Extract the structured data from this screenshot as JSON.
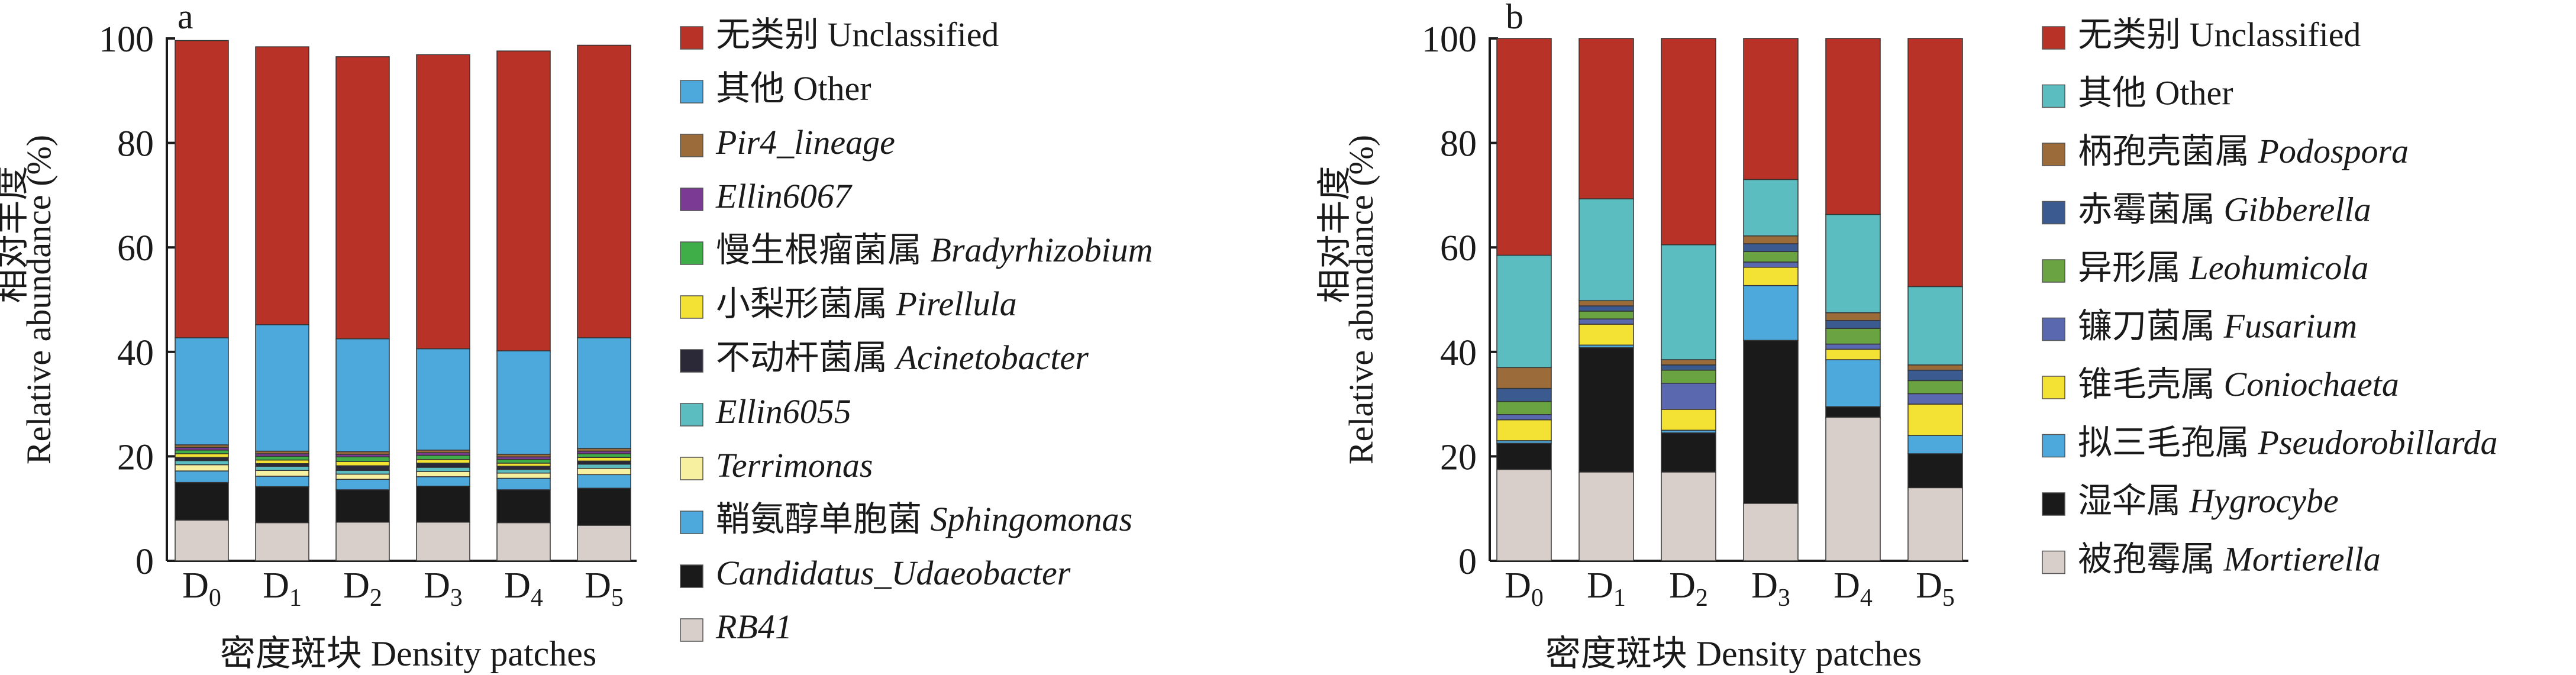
{
  "chart_data": [
    {
      "type": "bar",
      "stacked": true,
      "panel_label": "a",
      "categories": [
        "D0",
        "D1",
        "D2",
        "D3",
        "D4",
        "D5"
      ],
      "category_main": "D",
      "category_subs": [
        "0",
        "1",
        "2",
        "3",
        "4",
        "5"
      ],
      "ylabel_cn": "相对丰度",
      "ylabel_en": "Relative abundance (%)",
      "xlabel": "密度斑块 Density patches",
      "ylim": [
        0,
        100
      ],
      "yticks": [
        "0",
        "20",
        "40",
        "60",
        "80",
        "100"
      ],
      "legend_position": "right",
      "series": [
        {
          "name": "RB41",
          "cn": "",
          "en": "RB41",
          "italic": true,
          "color": "#d8cfcb",
          "values": [
            7.8,
            7.3,
            7.4,
            7.4,
            7.3,
            6.8
          ]
        },
        {
          "name": "Candidatus_Udaeobacter",
          "cn": "",
          "en": "Candidatus_Udaeobacter",
          "italic": true,
          "color": "#1a1a1a",
          "values": [
            7.2,
            6.9,
            6.2,
            6.9,
            6.3,
            7.1
          ]
        },
        {
          "name": "鞘氨醇单胞菌 Sphingomonas",
          "cn": "鞘氨醇单胞菌 ",
          "en": "Sphingomonas",
          "italic": true,
          "color": "#4da9dc",
          "values": [
            2.2,
            2.0,
            2.0,
            1.8,
            2.2,
            2.6
          ]
        },
        {
          "name": "Terrimonas",
          "cn": "",
          "en": "Terrimonas",
          "italic": true,
          "color": "#f7f0a0",
          "values": [
            1.2,
            1.1,
            1.0,
            1.0,
            1.0,
            1.2
          ]
        },
        {
          "name": "Ellin6055",
          "cn": "",
          "en": "Ellin6055",
          "italic": true,
          "color": "#5bbdc0",
          "values": [
            0.8,
            0.8,
            0.7,
            0.8,
            0.7,
            0.8
          ]
        },
        {
          "name": "不动杆菌属 Acinetobacter",
          "cn": "不动杆菌属 ",
          "en": "Acinetobacter",
          "italic": true,
          "color": "#2b2838",
          "values": [
            0.6,
            0.5,
            0.9,
            0.8,
            0.6,
            0.6
          ]
        },
        {
          "name": "小梨形菌属 Pirellula",
          "cn": "小梨形菌属 ",
          "en": "Pirellula",
          "italic": true,
          "color": "#f3e234",
          "values": [
            0.7,
            0.7,
            0.8,
            0.7,
            0.6,
            0.7
          ]
        },
        {
          "name": "慢生根瘤菌属 Bradyrhizobium",
          "cn": "慢生根瘤菌属 ",
          "en": "Bradyrhizobium",
          "italic": true,
          "color": "#3fae49",
          "values": [
            0.7,
            0.7,
            0.9,
            0.8,
            0.7,
            0.7
          ]
        },
        {
          "name": "Ellin6067",
          "cn": "",
          "en": "Ellin6067",
          "italic": true,
          "color": "#7b3b94",
          "values": [
            0.5,
            0.5,
            0.5,
            0.5,
            0.5,
            0.5
          ]
        },
        {
          "name": "Pir4_lineage",
          "cn": "",
          "en": "Pir4_lineage",
          "italic": true,
          "color": "#9c6b3a",
          "values": [
            0.5,
            0.5,
            0.5,
            0.5,
            0.5,
            0.5
          ]
        },
        {
          "name": "其他 Other",
          "cn": "其他 ",
          "en": "Other",
          "italic": false,
          "color": "#4da9dc",
          "values": [
            20.5,
            24.2,
            21.6,
            19.4,
            19.8,
            21.2
          ]
        },
        {
          "name": "无类别 Unclassified",
          "cn": "无类别 ",
          "en": "Unclassified",
          "italic": false,
          "color": "#b83228",
          "values": [
            56.9,
            53.2,
            54.0,
            56.3,
            57.4,
            56.0
          ]
        }
      ]
    },
    {
      "type": "bar",
      "stacked": true,
      "panel_label": "b",
      "categories": [
        "D0",
        "D1",
        "D2",
        "D3",
        "D4",
        "D5"
      ],
      "category_main": "D",
      "category_subs": [
        "0",
        "1",
        "2",
        "3",
        "4",
        "5"
      ],
      "ylabel_cn": "相对丰度",
      "ylabel_en": "Relative abundance (%)",
      "xlabel": "密度斑块 Density patches",
      "ylim": [
        0,
        100
      ],
      "yticks": [
        "0",
        "20",
        "40",
        "60",
        "80",
        "100"
      ],
      "legend_position": "right",
      "series": [
        {
          "name": "被孢霉属 Mortierella",
          "cn": "被孢霉属 ",
          "en": "Mortierella",
          "italic": true,
          "color": "#d8cfcb",
          "values": [
            17.5,
            17.0,
            17.0,
            11.0,
            27.5,
            14.0
          ]
        },
        {
          "name": "湿伞属 Hygrocybe",
          "cn": "湿伞属 ",
          "en": "Hygrocybe",
          "italic": true,
          "color": "#1a1a1a",
          "values": [
            5.0,
            23.8,
            7.5,
            31.2,
            2.0,
            6.5
          ]
        },
        {
          "name": "拟三毛孢属 Pseudorobillarda",
          "cn": "拟三毛孢属 ",
          "en": "Pseudorobillarda",
          "italic": true,
          "color": "#4da9dc",
          "values": [
            0.5,
            0.5,
            0.5,
            10.5,
            9.0,
            3.5
          ]
        },
        {
          "name": "锥毛壳属 Coniochaeta",
          "cn": "锥毛壳属 ",
          "en": "Coniochaeta",
          "italic": true,
          "color": "#f3e234",
          "values": [
            4.0,
            4.0,
            4.0,
            3.5,
            2.0,
            6.0
          ]
        },
        {
          "name": "镰刀菌属 Fusarium",
          "cn": "镰刀菌属 ",
          "en": "Fusarium",
          "italic": true,
          "color": "#5a68b0",
          "values": [
            1.0,
            1.0,
            5.0,
            1.0,
            1.0,
            2.0
          ]
        },
        {
          "name": "异形属 Leohumicola",
          "cn": "异形属 ",
          "en": "Leohumicola",
          "italic": true,
          "color": "#6aa342",
          "values": [
            2.5,
            1.5,
            2.5,
            2.0,
            3.0,
            2.5
          ]
        },
        {
          "name": "赤霉菌属 Gibberella",
          "cn": "赤霉菌属 ",
          "en": "Gibberella",
          "italic": true,
          "color": "#3b5a8f",
          "values": [
            2.5,
            1.0,
            1.0,
            1.5,
            1.5,
            2.0
          ]
        },
        {
          "name": "柄孢壳菌属 Podospora",
          "cn": "柄孢壳菌属 ",
          "en": "Podospora",
          "italic": true,
          "color": "#9c6b3a",
          "values": [
            4.0,
            1.0,
            1.0,
            1.5,
            1.5,
            1.0
          ]
        },
        {
          "name": "其他 Other",
          "cn": "其他 ",
          "en": "Other",
          "italic": false,
          "color": "#5bbdc0",
          "values": [
            21.5,
            19.5,
            22.0,
            10.8,
            18.8,
            15.0
          ]
        },
        {
          "name": "无类别 Unclassified",
          "cn": "无类别 ",
          "en": "Unclassified",
          "italic": false,
          "color": "#b83228",
          "values": [
            41.5,
            30.7,
            39.5,
            27.0,
            33.7,
            47.5
          ]
        }
      ]
    }
  ]
}
